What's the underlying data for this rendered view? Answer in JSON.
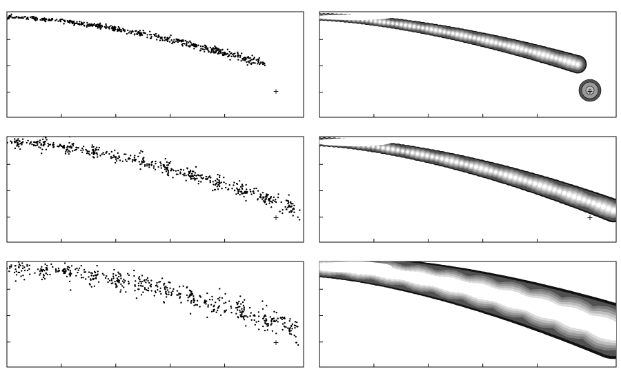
{
  "figure": {
    "description_free": true,
    "rows": 3,
    "columns": 2,
    "row_labels": [],
    "column_labels": []
  },
  "shading": {
    "levels": [
      "#ffffff",
      "#dcdcdc",
      "#bdbdbd",
      "#9a9a9a",
      "#7a7a7a",
      "#505050",
      "#111111"
    ]
  },
  "panels": [
    {
      "row": 0,
      "kind": "particles",
      "spread": "tight",
      "end": 0.87
    },
    {
      "row": 0,
      "kind": "density",
      "spread": "tight",
      "end": 0.87
    },
    {
      "row": 1,
      "kind": "particles",
      "spread": "medium",
      "end": 0.99
    },
    {
      "row": 1,
      "kind": "density",
      "spread": "medium",
      "end": 0.99
    },
    {
      "row": 2,
      "kind": "particles",
      "spread": "wide",
      "end": 0.99
    },
    {
      "row": 2,
      "kind": "density",
      "spread": "wide",
      "end": 0.99
    }
  ],
  "marker": {
    "symbol": "+"
  }
}
